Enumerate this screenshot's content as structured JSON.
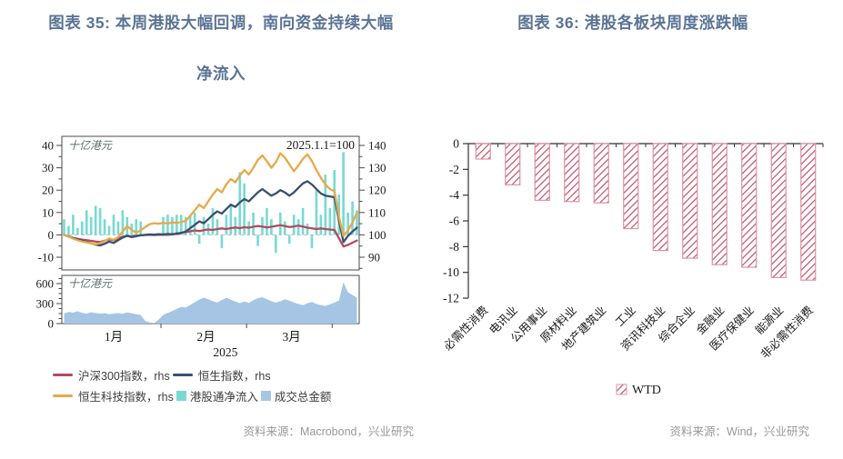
{
  "chart_data": [
    {
      "id": "fig35",
      "type": "combo",
      "title_line1": "图表 35: 本周港股大幅回调，南向资金持续大幅",
      "title_line2": "净流入",
      "source": "资料来源：Macrobond，兴业研究",
      "annotation": "2025.1.1=100",
      "x_axis": {
        "n_points": 66,
        "month_boundaries": [
          22,
          41,
          60
        ],
        "month_labels": [
          {
            "text": "1月",
            "center": 11
          },
          {
            "text": "2月",
            "center": 31.5
          },
          {
            "text": "3月",
            "center": 50.5
          }
        ],
        "year_label": "2025"
      },
      "panels": [
        {
          "name": "top",
          "left_axis": {
            "label": "十亿港元",
            "ticks": [
              40,
              30,
              20,
              10,
              0,
              -10
            ],
            "minor_step": 5,
            "minor_from": -15,
            "minor_to": 40
          },
          "right_axis": {
            "ticks": [
              140,
              130,
              120,
              110,
              100,
              90
            ],
            "minor_step": 5,
            "minor_from": 85,
            "minor_to": 140
          },
          "bar_series": {
            "key": "net-southbound-inflow",
            "name": "港股通净流入",
            "axis": "left",
            "color": "#79d9d2",
            "values": [
              7,
              4,
              9,
              3,
              6,
              11,
              8,
              13,
              12,
              7,
              4,
              9,
              6,
              11,
              8,
              5,
              7,
              6,
              0,
              0,
              0,
              0,
              8,
              9,
              8,
              9,
              9,
              8,
              9,
              10,
              -4,
              8,
              5,
              12,
              7,
              -6,
              9,
              14,
              8,
              28,
              23,
              6,
              10,
              -5,
              8,
              12,
              7,
              -8,
              10,
              6,
              -4,
              9,
              7,
              12,
              5,
              -6,
              20,
              9,
              27,
              12,
              29,
              18,
              37,
              10,
              15,
              11
            ]
          },
          "line_series": [
            {
              "key": "csi300-line",
              "name": "沪深300指数，rhs",
              "color": "#b34a5e",
              "values": [
                100,
                99.2,
                98.6,
                98.2,
                97.9,
                97.6,
                97.3,
                97,
                96.8,
                97.4,
                98,
                97.6,
                98.4,
                99.2,
                99.6,
                99.3,
                99.6,
                99.8,
                99.9,
                100,
                99.9,
                100,
                100.1,
                100,
                100.2,
                100.4,
                100.8,
                101.2,
                101.6,
                102,
                101.7,
                102.1,
                102.4,
                102.2,
                102.6,
                102.9,
                102.6,
                103,
                103.3,
                103,
                103.4,
                103.2,
                103.6,
                104,
                103.7,
                103.3,
                103.6,
                104,
                104.3,
                103.9,
                103.5,
                103.8,
                104.1,
                103.7,
                103.2,
                102.9,
                102.6,
                102.9,
                102.6,
                102.4,
                102.2,
                98.5,
                94.8,
                95.5,
                96.5,
                97.5
              ]
            },
            {
              "key": "hsi-line",
              "name": "恒生指数，rhs",
              "color": "#3a506e",
              "values": [
                100,
                99.3,
                98.6,
                98,
                97.4,
                96.8,
                96.2,
                95.6,
                95.3,
                96,
                97,
                96.4,
                97.6,
                98.8,
                99.6,
                99,
                99.4,
                99.8,
                100,
                100.2,
                100.1,
                100.3,
                100.2,
                100.4,
                100.3,
                100.6,
                100.9,
                101.5,
                103,
                104.5,
                106,
                105.2,
                107,
                109,
                110.5,
                109.5,
                111.5,
                113.5,
                112.5,
                114.5,
                116,
                115,
                117,
                119,
                120.5,
                119,
                117.5,
                118.5,
                120,
                119,
                117.5,
                119,
                121,
                123,
                124,
                122.5,
                120.5,
                118.5,
                117.5,
                117.2,
                116.8,
                106.5,
                96.8,
                99.5,
                101.5,
                103.2
              ]
            },
            {
              "key": "hstech-line",
              "name": "恒生科技指数，rhs",
              "color": "#e7a94a",
              "values": [
                100,
                99.2,
                98.3,
                97.6,
                97,
                96.6,
                96.2,
                95.8,
                96.3,
                97.2,
                98.4,
                97.8,
                99,
                101.5,
                104,
                102.2,
                101,
                102,
                103.5,
                104.8,
                105.2,
                105,
                105.4,
                105.1,
                105.6,
                105.3,
                105.8,
                106.2,
                108.5,
                111,
                113.5,
                112,
                115,
                118,
                120.5,
                119,
                122.5,
                125,
                123.5,
                126.5,
                129,
                127,
                130,
                133.5,
                135.5,
                133,
                130,
                132.5,
                136.5,
                134.5,
                131.5,
                128.5,
                131,
                134,
                136,
                133,
                129,
                125.5,
                122.5,
                120.5,
                119.5,
                108,
                99.5,
                102,
                105.5,
                110
              ]
            }
          ]
        },
        {
          "name": "bottom",
          "left_axis": {
            "label": "十亿港元",
            "ticks": [
              600,
              300,
              0
            ],
            "minor_step": 75,
            "minor_from": 0,
            "minor_to": 675
          },
          "area_series": {
            "key": "turnover-area",
            "name": "成交总金额",
            "color": "#a6c5e4",
            "values": [
              150,
              175,
              165,
              185,
              160,
              150,
              170,
              158,
              148,
              156,
              142,
              150,
              158,
              148,
              168,
              155,
              140,
              130,
              40,
              15,
              10,
              60,
              130,
              160,
              190,
              220,
              250,
              240,
              280,
              320,
              360,
              390,
              365,
              335,
              315,
              350,
              385,
              360,
              330,
              305,
              330,
              310,
              350,
              380,
              395,
              365,
              335,
              315,
              335,
              365,
              345,
              315,
              295,
              275,
              305,
              325,
              295,
              275,
              265,
              290,
              315,
              345,
              620,
              470,
              430,
              385
            ]
          }
        }
      ],
      "legend_rows": [
        [
          {
            "type": "line",
            "color": "#b34a5e",
            "label": "沪深300指数，rhs"
          },
          {
            "type": "line",
            "color": "#3a506e",
            "label": "恒生指数，rhs"
          }
        ],
        [
          {
            "type": "line",
            "color": "#e7a94a",
            "label": "恒生科技指数，rhs"
          },
          {
            "type": "square",
            "color": "#79d9d2",
            "label": "港股通净流入"
          },
          {
            "type": "square",
            "color": "#a6c5e4",
            "label": "成交总金额"
          }
        ]
      ]
    },
    {
      "id": "fig36",
      "type": "bar",
      "title": "图表 36: 港股各板块周度涨跌幅",
      "source": "资料来源：Wind，兴业研究",
      "unit_label": "%",
      "categories": [
        "必需性消费",
        "电讯业",
        "公用事业",
        "原材料业",
        "地产建筑业",
        "工业",
        "资讯科技业",
        "综合企业",
        "金融业",
        "医疗保健业",
        "能源业",
        "非必需性消费"
      ],
      "values": [
        -1.2,
        -3.2,
        -4.4,
        -4.5,
        -4.6,
        -6.6,
        -8.3,
        -8.9,
        -9.4,
        -9.6,
        -10.4,
        -10.6
      ],
      "ylim": [
        -12,
        0
      ],
      "yticks": [
        0,
        -2,
        -4,
        -6,
        -8,
        -10,
        -12
      ],
      "legend_label": "WTD",
      "bar_style": {
        "border": "#dc93a2",
        "hatch": "#c0506a",
        "hatch_bg": "#ffffff"
      }
    }
  ]
}
